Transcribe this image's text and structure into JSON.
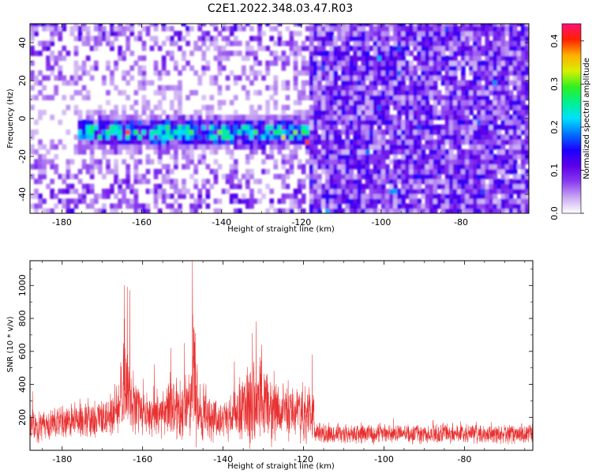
{
  "title": "C2E1.2022.348.03.47.R03",
  "colors": {
    "signal": "#e83030",
    "colormap": [
      "#ffffff",
      "#c9a8f2",
      "#8a3cf0",
      "#5b00e8",
      "#1c00ff",
      "#0070ff",
      "#00e0ff",
      "#00f090",
      "#30f020",
      "#d8f000",
      "#ffb000",
      "#ff2000",
      "#ff1078"
    ]
  },
  "chart_data": [
    {
      "type": "heatmap",
      "name": "spectrogram",
      "xlabel": "Height of straight line (km)",
      "ylabel": "Frequency (Hz)",
      "xlim": [
        -188,
        -63
      ],
      "ylim": [
        -50,
        50
      ],
      "xticks": [
        -180,
        -160,
        -140,
        -120,
        -100,
        -80
      ],
      "yticks": [
        -40,
        -20,
        0,
        20,
        40
      ],
      "colorbar": {
        "label": "Normalized spectral amplitude",
        "range": [
          0,
          0.44
        ],
        "ticks": [
          "0.0",
          "0.1",
          "0.2",
          "0.3",
          "0.4"
        ],
        "tick_values": [
          0,
          0.1,
          0.2,
          0.3,
          0.4
        ]
      },
      "features": [
        {
          "name": "signal band",
          "x_range": [
            -176,
            -118
          ],
          "freq_center": -7,
          "freq_halfwidth": 7,
          "peak_amplitude": 0.4
        },
        {
          "name": "sparse noise region",
          "x_range": [
            -188,
            -118
          ],
          "amplitude": 0.05
        },
        {
          "name": "dense noise region",
          "x_range": [
            -118,
            -63
          ],
          "amplitude": 0.08
        }
      ]
    },
    {
      "type": "line",
      "name": "snr",
      "xlabel": "Height of straight line (km)",
      "ylabel": "SNR (10 * v/v)",
      "xlim": [
        -188,
        -63
      ],
      "ylim": [
        0,
        1150
      ],
      "xticks": [
        -180,
        -160,
        -140,
        -120,
        -100,
        -80
      ],
      "yticks": [
        200,
        400,
        600,
        800,
        1000
      ],
      "series": [
        {
          "name": "SNR",
          "envelope": [
            {
              "x": -188,
              "base": 130,
              "spread": 150
            },
            {
              "x": -176,
              "base": 170,
              "spread": 170
            },
            {
              "x": -168,
              "base": 190,
              "spread": 180
            },
            {
              "x": -166,
              "base": 250,
              "spread": 250
            },
            {
              "x": -164.5,
              "base": 430,
              "spread": 580
            },
            {
              "x": -163,
              "base": 260,
              "spread": 300
            },
            {
              "x": -158,
              "base": 200,
              "spread": 200
            },
            {
              "x": -152,
              "base": 230,
              "spread": 300
            },
            {
              "x": -148,
              "base": 240,
              "spread": 320
            },
            {
              "x": -147.5,
              "base": 300,
              "spread": 850
            },
            {
              "x": -146,
              "base": 220,
              "spread": 260
            },
            {
              "x": -140,
              "base": 170,
              "spread": 170
            },
            {
              "x": -134,
              "base": 260,
              "spread": 350
            },
            {
              "x": -131,
              "base": 280,
              "spread": 420
            },
            {
              "x": -126,
              "base": 230,
              "spread": 260
            },
            {
              "x": -120,
              "base": 210,
              "spread": 240
            },
            {
              "x": -117.5,
              "base": 200,
              "spread": 220
            },
            {
              "x": -117,
              "base": 95,
              "spread": 90
            },
            {
              "x": -63,
              "base": 95,
              "spread": 95
            }
          ],
          "peaks": [
            {
              "x": -164.6,
              "y": 1000
            },
            {
              "x": -163.8,
              "y": 990
            },
            {
              "x": -163.2,
              "y": 970
            },
            {
              "x": -147.6,
              "y": 1150
            },
            {
              "x": -147.2,
              "y": 730
            },
            {
              "x": -153.0,
              "y": 620
            },
            {
              "x": -149.6,
              "y": 650
            },
            {
              "x": -131.8,
              "y": 780
            },
            {
              "x": -132.7,
              "y": 710
            },
            {
              "x": -130.4,
              "y": 640
            },
            {
              "x": -157.1,
              "y": 520
            },
            {
              "x": -117.8,
              "y": 580
            }
          ]
        }
      ]
    }
  ]
}
